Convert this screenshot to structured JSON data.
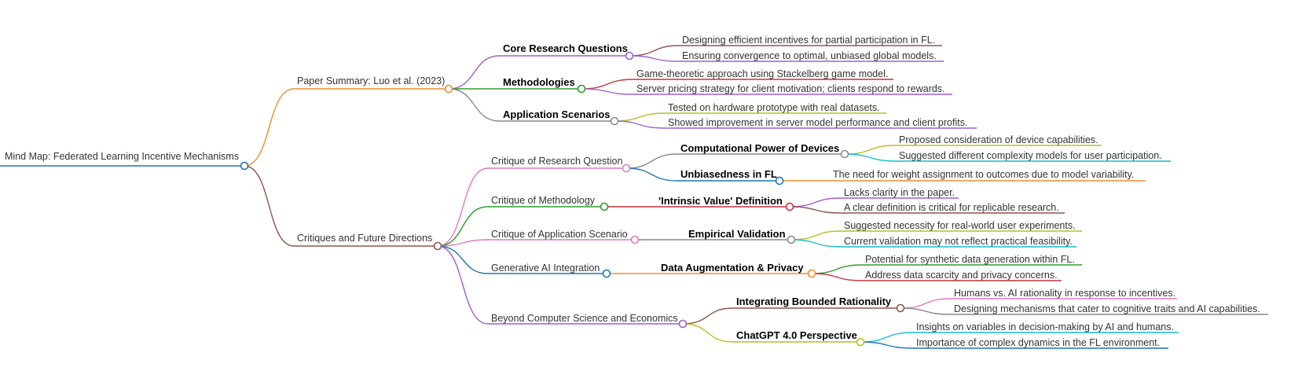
{
  "colors": {
    "orange": "#f28e2b",
    "brown": "#8c564b",
    "purple": "#a05fd1",
    "green": "#2ca02c",
    "gray": "#8a8a8a",
    "red": "#c9303c",
    "olive": "#bcbd22",
    "blue": "#1f77b4",
    "pink": "#e377c2",
    "cyan": "#17becf"
  },
  "root": {
    "label": "Mind Map: Federated Learning Incentive Mechanisms",
    "children": [
      {
        "label": "Paper Summary: Luo et al. (2023)",
        "children": [
          {
            "label": "Core Research Questions",
            "children": [
              {
                "label": "Designing efficient incentives for partial participation in FL."
              },
              {
                "label": "Ensuring convergence to optimal, unbiased global models."
              }
            ]
          },
          {
            "label": "Methodologies",
            "children": [
              {
                "label": "Game-theoretic approach using Stackelberg game model."
              },
              {
                "label": "Server pricing strategy for client motivation; clients respond to rewards."
              }
            ]
          },
          {
            "label": "Application Scenarios",
            "children": [
              {
                "label": "Tested on hardware prototype with real datasets."
              },
              {
                "label": "Showed improvement in server model performance and client profits."
              }
            ]
          }
        ]
      },
      {
        "label": "Critiques and Future Directions",
        "children": [
          {
            "label": "Critique of Research Question",
            "children": [
              {
                "label": "Computational Power of Devices",
                "children": [
                  {
                    "label": "Proposed consideration of device capabilities."
                  },
                  {
                    "label": "Suggested different complexity models for user participation."
                  }
                ]
              },
              {
                "label": "Unbiasedness in FL",
                "children": [
                  {
                    "label": "The need for weight assignment to outcomes due to model variability."
                  }
                ]
              }
            ]
          },
          {
            "label": "Critique of Methodology",
            "children": [
              {
                "label": "'Intrinsic Value' Definition",
                "children": [
                  {
                    "label": "Lacks clarity in the paper."
                  },
                  {
                    "label": "A clear definition is critical for replicable research."
                  }
                ]
              }
            ]
          },
          {
            "label": "Critique of Application Scenario",
            "children": [
              {
                "label": "Empirical Validation",
                "children": [
                  {
                    "label": "Suggested necessity for real-world user experiments."
                  },
                  {
                    "label": "Current validation may not reflect practical feasibility."
                  }
                ]
              }
            ]
          },
          {
            "label": "Generative AI Integration",
            "children": [
              {
                "label": "Data Augmentation & Privacy",
                "children": [
                  {
                    "label": "Potential for synthetic data generation within FL."
                  },
                  {
                    "label": "Address data scarcity and privacy concerns."
                  }
                ]
              }
            ]
          },
          {
            "label": "Beyond Computer Science and Economics",
            "children": [
              {
                "label": "Integrating Bounded Rationality",
                "children": [
                  {
                    "label": "Humans vs. AI rationality in response to incentives."
                  },
                  {
                    "label": "Designing mechanisms that cater to cognitive traits and AI capabilities."
                  }
                ]
              },
              {
                "label": "ChatGPT 4.0 Perspective",
                "children": [
                  {
                    "label": "Insights on variables in decision-making by AI and humans."
                  },
                  {
                    "label": "Importance of complex dynamics in the FL environment."
                  }
                ]
              }
            ]
          }
        ]
      }
    ]
  }
}
